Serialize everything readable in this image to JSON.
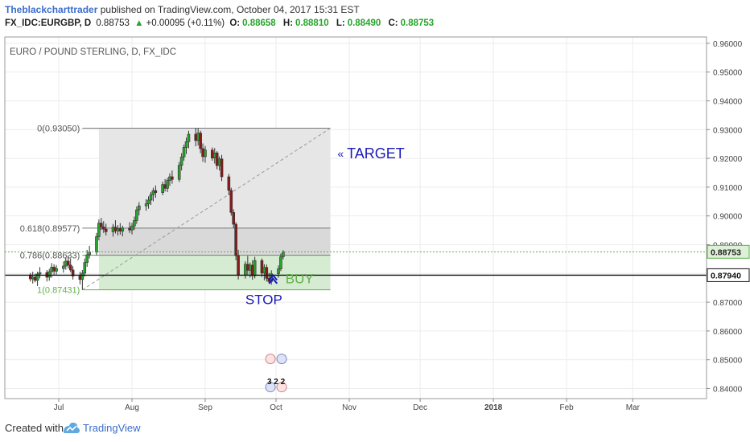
{
  "header": {
    "author": "Theblackcharttrader",
    "published": "published on TradingView.com, October 04, 2017 15:31 EST",
    "symbol": "FX_IDC:EURGBP, D",
    "last": "0.88753",
    "change": "+0.00095 (+0.11%)",
    "o_label": "O:",
    "o_value": "0.88658",
    "h_label": "H:",
    "h_value": "0.88810",
    "l_label": "L:",
    "l_value": "0.88490",
    "c_label": "C:",
    "c_value": "0.88753"
  },
  "footer": {
    "created": "Created with",
    "brand": "TradingView"
  },
  "colors": {
    "up": "#27a42b",
    "down": "#8b1a1a",
    "annotation": "#1a1ab8",
    "buy": "#62b04a",
    "fib_zone_top": "#e6e6e6",
    "fib_zone_mid": "#d9d9d9",
    "fib_zone_green": "#d6ecd2"
  },
  "chart_data": {
    "type": "candlestick",
    "title": "EURO / POUND STERLING, D, FX_IDC",
    "x_ticks": [
      "Jul",
      "Aug",
      "Sep",
      "Oct",
      "Nov",
      "Dec",
      "2018",
      "Feb",
      "Mar"
    ],
    "y_ticks": [
      "0.96000",
      "0.95000",
      "0.94000",
      "0.93000",
      "0.92000",
      "0.91000",
      "0.90000",
      "0.89000",
      "0.88000",
      "0.87000",
      "0.86000",
      "0.85000",
      "0.84000"
    ],
    "ylim": [
      0.8365,
      0.9622
    ],
    "price_labels": [
      {
        "text": "0.88753",
        "value": 0.88753,
        "style": "green"
      },
      {
        "text": "0.87940",
        "value": 0.8794,
        "style": "black"
      }
    ],
    "fib_levels": [
      {
        "label": "0(0.93050)",
        "value": 0.9305
      },
      {
        "label": "0.618(0.89577)",
        "value": 0.89577
      },
      {
        "label": "0.786(0.88633)",
        "value": 0.88633
      },
      {
        "label": "1(0.87431)",
        "value": 0.87431
      }
    ],
    "support_line": 0.8794,
    "annotations": [
      {
        "text": "TARGET",
        "value": 0.922,
        "date": "2017-10-31"
      },
      {
        "text": "BUY",
        "value": 0.878,
        "date": "2017-10-05"
      },
      {
        "text": "STOP",
        "value": 0.871,
        "date": "2017-09-28"
      }
    ],
    "event_icons": {
      "date": "2017-10-01",
      "count_label": "3 2 2"
    },
    "candles": [
      [
        "2017-06-19",
        0.8795,
        0.8802,
        0.8772,
        0.8781
      ],
      [
        "2017-06-20",
        0.8781,
        0.8806,
        0.8765,
        0.8787
      ],
      [
        "2017-06-21",
        0.8787,
        0.8799,
        0.8769,
        0.8776
      ],
      [
        "2017-06-22",
        0.8776,
        0.8806,
        0.8756,
        0.8798
      ],
      [
        "2017-06-23",
        0.8798,
        0.8822,
        0.8783,
        0.8803
      ],
      [
        "2017-06-26",
        0.8803,
        0.8812,
        0.8772,
        0.8787
      ],
      [
        "2017-06-27",
        0.8787,
        0.8816,
        0.8775,
        0.8806
      ],
      [
        "2017-06-28",
        0.8806,
        0.8836,
        0.8785,
        0.8822
      ],
      [
        "2017-06-29",
        0.8822,
        0.8832,
        0.8795,
        0.8808
      ],
      [
        "2017-06-30",
        0.8808,
        0.8829,
        0.8796,
        0.8817
      ],
      [
        "2017-07-03",
        0.8817,
        0.8842,
        0.8803,
        0.8826
      ],
      [
        "2017-07-04",
        0.8826,
        0.8855,
        0.8813,
        0.8843
      ],
      [
        "2017-07-05",
        0.8843,
        0.8862,
        0.8818,
        0.8829
      ],
      [
        "2017-07-06",
        0.8829,
        0.8852,
        0.8804,
        0.8812
      ],
      [
        "2017-07-07",
        0.8812,
        0.8825,
        0.8779,
        0.8791
      ],
      [
        "2017-07-10",
        0.8791,
        0.8806,
        0.8762,
        0.8779
      ],
      [
        "2017-07-11",
        0.8779,
        0.8812,
        0.8743,
        0.8801
      ],
      [
        "2017-07-12",
        0.8801,
        0.8852,
        0.8789,
        0.8838
      ],
      [
        "2017-07-13",
        0.8838,
        0.8882,
        0.8823,
        0.8865
      ],
      [
        "2017-07-14",
        0.8865,
        0.8896,
        0.8852,
        0.8874
      ],
      [
        "2017-07-17",
        0.8874,
        0.8941,
        0.8864,
        0.8928
      ],
      [
        "2017-07-18",
        0.8928,
        0.8988,
        0.8915,
        0.8975
      ],
      [
        "2017-07-19",
        0.8975,
        0.8993,
        0.8951,
        0.8962
      ],
      [
        "2017-07-20",
        0.8962,
        0.8982,
        0.8941,
        0.8954
      ],
      [
        "2017-07-21",
        0.8954,
        0.8973,
        0.8932,
        0.8945
      ],
      [
        "2017-07-24",
        0.8945,
        0.8972,
        0.8928,
        0.8961
      ],
      [
        "2017-07-25",
        0.8961,
        0.8985,
        0.8939,
        0.8948
      ],
      [
        "2017-07-26",
        0.8948,
        0.8968,
        0.8932,
        0.8956
      ],
      [
        "2017-07-27",
        0.8956,
        0.8975,
        0.8935,
        0.8947
      ],
      [
        "2017-07-28",
        0.8947,
        0.8966,
        0.8929,
        0.8958
      ],
      [
        "2017-07-31",
        0.8958,
        0.8978,
        0.8941,
        0.8951
      ],
      [
        "2017-08-01",
        0.8951,
        0.8976,
        0.8936,
        0.8965
      ],
      [
        "2017-08-02",
        0.8965,
        0.8998,
        0.8951,
        0.8984
      ],
      [
        "2017-08-03",
        0.8984,
        0.9033,
        0.8972,
        0.9021
      ],
      [
        "2017-08-04",
        0.9021,
        0.9048,
        0.9002,
        0.9035
      ],
      [
        "2017-08-07",
        0.9035,
        0.9058,
        0.9018,
        0.9042
      ],
      [
        "2017-08-08",
        0.9042,
        0.9068,
        0.9025,
        0.9055
      ],
      [
        "2017-08-09",
        0.9055,
        0.9083,
        0.9038,
        0.9074
      ],
      [
        "2017-08-10",
        0.9074,
        0.9098,
        0.9051,
        0.9088
      ],
      [
        "2017-08-11",
        0.9088,
        0.9106,
        0.9063,
        0.9081
      ],
      [
        "2017-08-14",
        0.9081,
        0.9119,
        0.9072,
        0.9109
      ],
      [
        "2017-08-15",
        0.9109,
        0.9128,
        0.9085,
        0.9096
      ],
      [
        "2017-08-16",
        0.9096,
        0.9132,
        0.9083,
        0.9123
      ],
      [
        "2017-08-17",
        0.9123,
        0.9148,
        0.9104,
        0.9136
      ],
      [
        "2017-08-18",
        0.9136,
        0.9158,
        0.9112,
        0.9127
      ],
      [
        "2017-08-21",
        0.9127,
        0.9188,
        0.9118,
        0.9176
      ],
      [
        "2017-08-22",
        0.9176,
        0.9218,
        0.9158,
        0.9205
      ],
      [
        "2017-08-23",
        0.9205,
        0.9248,
        0.9192,
        0.9238
      ],
      [
        "2017-08-24",
        0.9238,
        0.9272,
        0.9215,
        0.9258
      ],
      [
        "2017-08-25",
        0.9258,
        0.9296,
        0.9235,
        0.9284
      ],
      [
        "2017-08-28",
        0.9284,
        0.9306,
        0.9242,
        0.9262
      ],
      [
        "2017-08-29",
        0.9262,
        0.9305,
        0.9245,
        0.9288
      ],
      [
        "2017-08-30",
        0.9288,
        0.9296,
        0.9218,
        0.9234
      ],
      [
        "2017-08-31",
        0.9234,
        0.9252,
        0.9188,
        0.9206
      ],
      [
        "2017-09-01",
        0.9206,
        0.9243,
        0.9185,
        0.9229
      ],
      [
        "2017-09-04",
        0.9229,
        0.9238,
        0.9192,
        0.9201
      ],
      [
        "2017-09-05",
        0.9201,
        0.9236,
        0.9182,
        0.9219
      ],
      [
        "2017-09-06",
        0.9219,
        0.9225,
        0.9162,
        0.9175
      ],
      [
        "2017-09-07",
        0.9175,
        0.9207,
        0.9158,
        0.9198
      ],
      [
        "2017-09-08",
        0.9198,
        0.9212,
        0.9121,
        0.9136
      ],
      [
        "2017-09-11",
        0.9136,
        0.9146,
        0.9072,
        0.9089
      ],
      [
        "2017-09-12",
        0.9089,
        0.9098,
        0.9001,
        0.9012
      ],
      [
        "2017-09-13",
        0.9012,
        0.9023,
        0.8958,
        0.8971
      ],
      [
        "2017-09-14",
        0.8971,
        0.8978,
        0.8846,
        0.8862
      ],
      [
        "2017-09-15",
        0.8862,
        0.8882,
        0.8779,
        0.8795
      ],
      [
        "2017-09-18",
        0.8795,
        0.8842,
        0.8782,
        0.8832
      ],
      [
        "2017-09-19",
        0.8832,
        0.8861,
        0.8795,
        0.8811
      ],
      [
        "2017-09-20",
        0.8811,
        0.8838,
        0.8786,
        0.8829
      ],
      [
        "2017-09-21",
        0.8829,
        0.8846,
        0.8778,
        0.8792
      ],
      [
        "2017-09-22",
        0.8792,
        0.8858,
        0.8783,
        0.8845
      ],
      [
        "2017-09-25",
        0.8845,
        0.8852,
        0.8788,
        0.8801
      ],
      [
        "2017-09-26",
        0.8801,
        0.8832,
        0.8776,
        0.8821
      ],
      [
        "2017-09-27",
        0.8821,
        0.8831,
        0.8772,
        0.8783
      ],
      [
        "2017-09-28",
        0.8783,
        0.8802,
        0.8766,
        0.8772
      ],
      [
        "2017-09-29",
        0.8772,
        0.8811,
        0.8761,
        0.8799
      ],
      [
        "2017-10-02",
        0.8799,
        0.8828,
        0.8785,
        0.8816
      ],
      [
        "2017-10-03",
        0.8816,
        0.8869,
        0.8808,
        0.8858
      ],
      [
        "2017-10-04",
        0.8858,
        0.8881,
        0.8849,
        0.8875
      ]
    ]
  }
}
